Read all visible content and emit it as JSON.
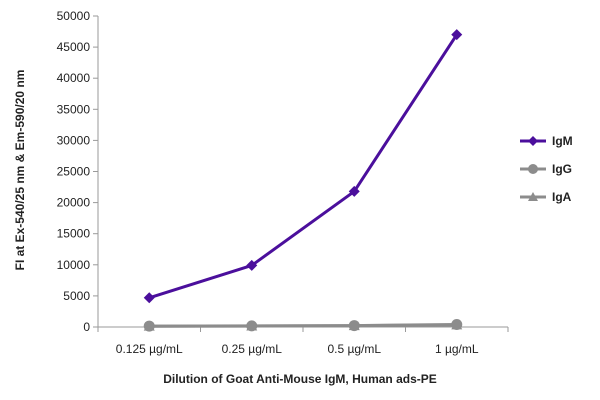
{
  "chart_data": {
    "type": "line",
    "xlabel": "Dilution of Goat Anti-Mouse IgM, Human ads-PE",
    "ylabel": "FI at Ex-540/25 nm & Em-590/20 nm",
    "categories": [
      "0.125 µg/mL",
      "0.25 µg/mL",
      "0.5 µg/mL",
      "1 µg/mL"
    ],
    "ylim": [
      0,
      50000
    ],
    "yticks": [
      0,
      5000,
      10000,
      15000,
      20000,
      25000,
      30000,
      35000,
      40000,
      45000,
      50000
    ],
    "grid": false,
    "legend_position": "right",
    "series": [
      {
        "name": "IgM",
        "values": [
          4700,
          9900,
          21800,
          47000
        ],
        "color": "#4B0F9C",
        "marker": "diamond"
      },
      {
        "name": "IgG",
        "values": [
          150,
          180,
          230,
          400
        ],
        "color": "#8C8C8C",
        "marker": "circle"
      },
      {
        "name": "IgA",
        "values": [
          120,
          150,
          200,
          320
        ],
        "color": "#8C8C8C",
        "marker": "triangle"
      }
    ]
  }
}
